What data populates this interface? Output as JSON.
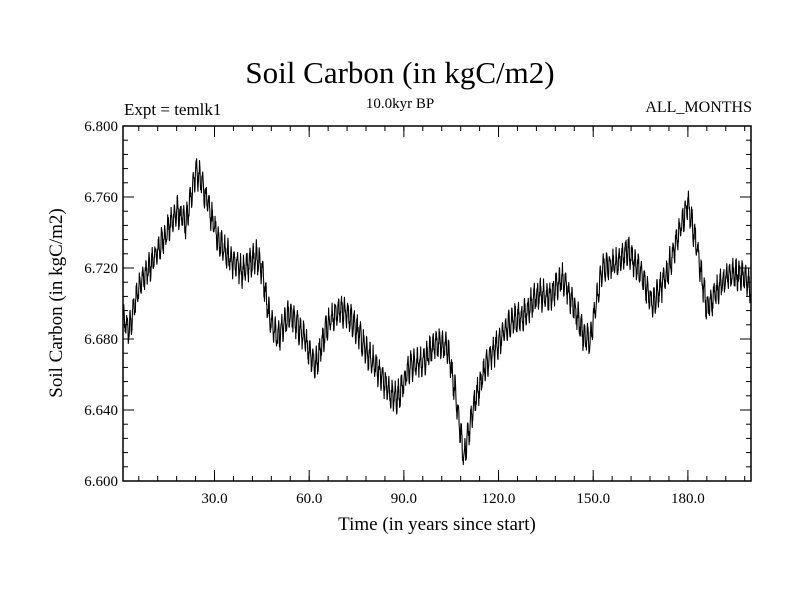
{
  "header": {
    "expt": "Expt = temlk1",
    "period": "10.0kyr BP",
    "months": "ALL_MONTHS"
  },
  "chart_data": {
    "type": "line",
    "title": "Soil Carbon (in kgC/m2)",
    "xlabel": "Time (in years since start)",
    "ylabel": "Soil Carbon (in kgC/m2)",
    "xlim": [
      1,
      200
    ],
    "ylim": [
      6.6,
      6.8
    ],
    "xticks": [
      30,
      60,
      90,
      120,
      150,
      180
    ],
    "xtick_labels": [
      "30.0",
      "60.0",
      "90.0",
      "120.0",
      "150.0",
      "180.0"
    ],
    "yticks": [
      6.6,
      6.64,
      6.68,
      6.72,
      6.76,
      6.8
    ],
    "ytick_labels": [
      "6.600",
      "6.640",
      "6.680",
      "6.720",
      "6.760",
      "6.800"
    ],
    "line_color": "#000000",
    "monthly_noise_amplitude": 0.008,
    "series": [
      {
        "name": "Soil Carbon",
        "x": [
          1,
          3,
          6,
          10,
          14,
          18,
          21,
          24,
          26,
          28,
          31,
          35,
          39,
          43,
          45,
          47,
          50,
          54,
          58,
          62,
          66,
          70,
          74,
          78,
          82,
          86,
          88,
          92,
          96,
          100,
          104,
          107,
          109,
          112,
          116,
          120,
          124,
          128,
          132,
          136,
          140,
          144,
          147,
          149,
          153,
          157,
          161,
          165,
          169,
          173,
          177,
          180,
          183,
          186,
          190,
          194,
          198,
          200
        ],
        "y": [
          6.69,
          6.685,
          6.71,
          6.722,
          6.737,
          6.752,
          6.745,
          6.775,
          6.768,
          6.755,
          6.737,
          6.725,
          6.718,
          6.727,
          6.72,
          6.695,
          6.68,
          6.695,
          6.682,
          6.665,
          6.69,
          6.697,
          6.69,
          6.673,
          6.662,
          6.648,
          6.647,
          6.665,
          6.667,
          6.678,
          6.675,
          6.642,
          6.612,
          6.642,
          6.665,
          6.678,
          6.69,
          6.693,
          6.705,
          6.703,
          6.715,
          6.698,
          6.682,
          6.68,
          6.72,
          6.722,
          6.73,
          6.717,
          6.7,
          6.715,
          6.738,
          6.757,
          6.73,
          6.697,
          6.71,
          6.717,
          6.715,
          6.707
        ]
      }
    ]
  }
}
